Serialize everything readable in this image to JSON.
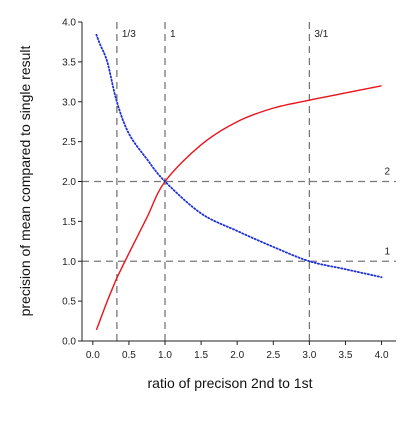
{
  "chart_data": {
    "type": "line",
    "xlabel": "ratio of precison 2nd to 1st",
    "ylabel": "precision of mean compared to single result",
    "xlim": [
      -0.15,
      4.2
    ],
    "ylim": [
      0,
      4.0
    ],
    "x_ticks": [
      "0.0",
      "0.5",
      "1.0",
      "1.5",
      "2.0",
      "2.5",
      "3.0",
      "3.5",
      "4.0"
    ],
    "y_ticks": [
      "0.0",
      "0.5",
      "1.0",
      "1.5",
      "2.0",
      "2.5",
      "3.0",
      "3.5",
      "4.0"
    ],
    "grid": false,
    "legend": "none",
    "series": [
      {
        "color": "#e8141c",
        "style": "solid",
        "x": [
          0.05,
          0.1,
          0.2,
          0.3,
          0.333,
          0.5,
          0.75,
          1.0,
          1.5,
          2.0,
          2.5,
          3.0,
          3.5,
          4.0
        ],
        "y": [
          0.14,
          0.26,
          0.5,
          0.72,
          0.79,
          1.1,
          1.55,
          2.0,
          2.46,
          2.75,
          2.92,
          3.02,
          3.11,
          3.2
        ]
      },
      {
        "color": "#1e2fd6",
        "style": "dotted",
        "x": [
          0.05,
          0.1,
          0.2,
          0.333,
          0.5,
          0.75,
          1.0,
          1.5,
          2.0,
          2.5,
          3.0,
          3.5,
          4.0
        ],
        "y": [
          3.84,
          3.72,
          3.5,
          3.0,
          2.6,
          2.28,
          2.0,
          1.6,
          1.38,
          1.18,
          1.0,
          0.9,
          0.8
        ]
      }
    ],
    "vlines": [
      {
        "x": 0.333,
        "label": "1/3"
      },
      {
        "x": 1.0,
        "label": "1"
      },
      {
        "x": 3.0,
        "label": "3/1"
      }
    ],
    "hlines": [
      {
        "y": 2.0,
        "label": "2"
      },
      {
        "y": 1.0,
        "label": "1"
      }
    ]
  }
}
